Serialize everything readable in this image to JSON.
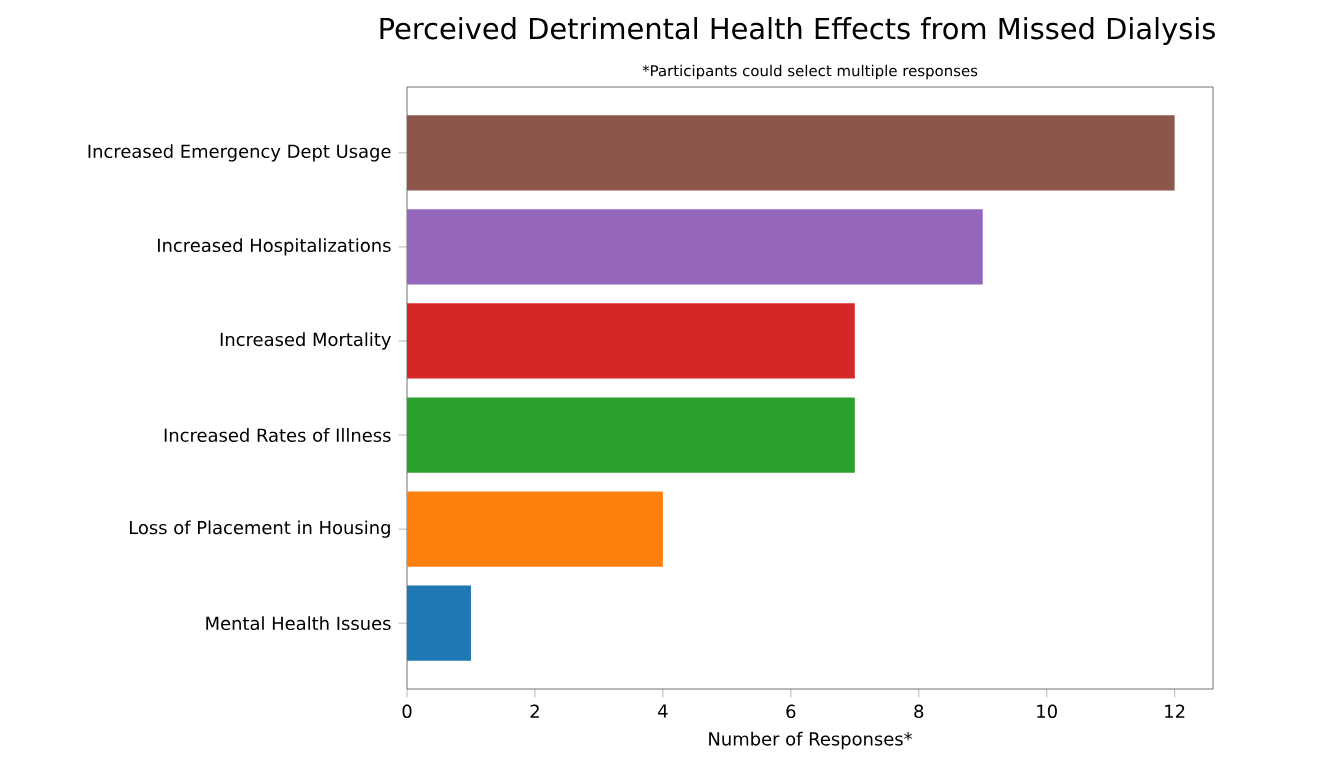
{
  "chart_data": {
    "type": "bar",
    "orientation": "horizontal",
    "title": "Perceived Detrimental Health Effects from Missed Dialysis",
    "subtitle": "*Participants could select multiple responses",
    "xlabel": "Number of Responses*",
    "categories": [
      "Increased Emergency Dept Usage",
      "Increased Hospitalizations",
      "Increased Mortality",
      "Increased Rates of Illness",
      "Loss of Placement in Housing",
      "Mental Health Issues"
    ],
    "values": [
      12,
      9,
      7,
      7,
      4,
      1
    ],
    "colors": [
      "#8c564b",
      "#9467bd",
      "#d62728",
      "#2ca02c",
      "#ff7f0e",
      "#1f77b4"
    ],
    "xlim": [
      0,
      12.6
    ],
    "xticks": [
      0,
      2,
      4,
      6,
      8,
      10,
      12
    ]
  }
}
